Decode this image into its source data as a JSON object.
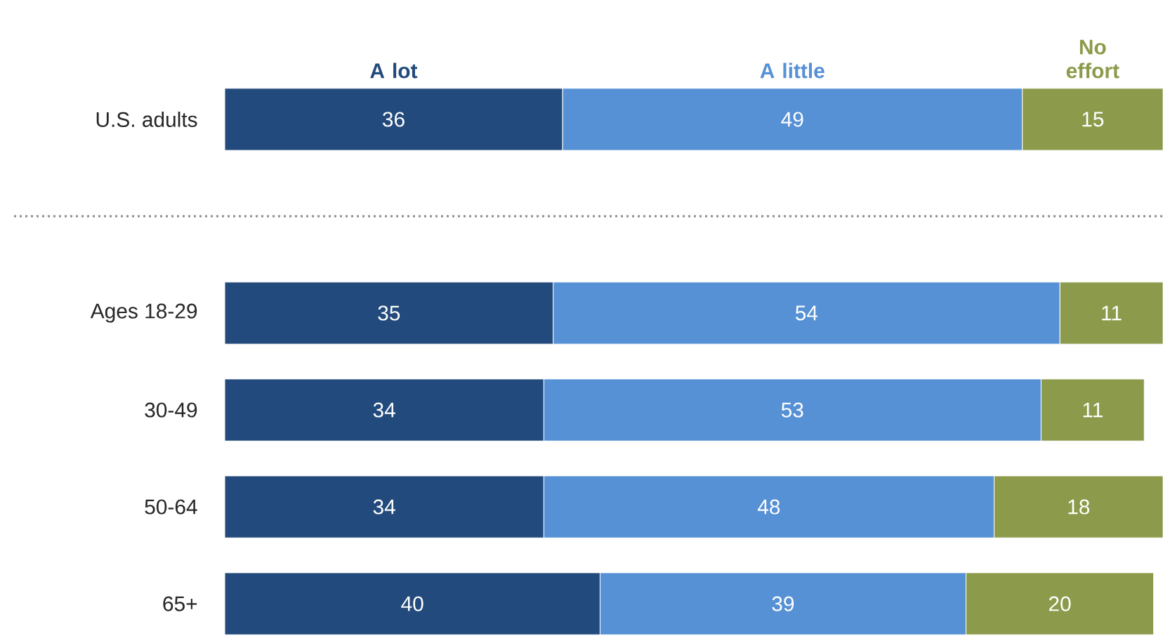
{
  "chart_data": {
    "type": "bar",
    "orientation": "horizontal",
    "stacked": true,
    "data_labels": true,
    "categories": [
      "U.S. adults",
      null,
      "Ages 18-29",
      "30-49",
      "50-64",
      "65+"
    ],
    "xlim": [
      0,
      100
    ],
    "series": [
      {
        "name": "A lot",
        "color": "#234a7c",
        "values": [
          36,
          null,
          35,
          34,
          34,
          40
        ]
      },
      {
        "name": "A little",
        "color": "#5690d5",
        "values": [
          49,
          null,
          54,
          53,
          48,
          39
        ]
      },
      {
        "name": "No effort",
        "color": "#8c9b4b",
        "values": [
          15,
          null,
          11,
          11,
          18,
          20
        ]
      }
    ]
  }
}
